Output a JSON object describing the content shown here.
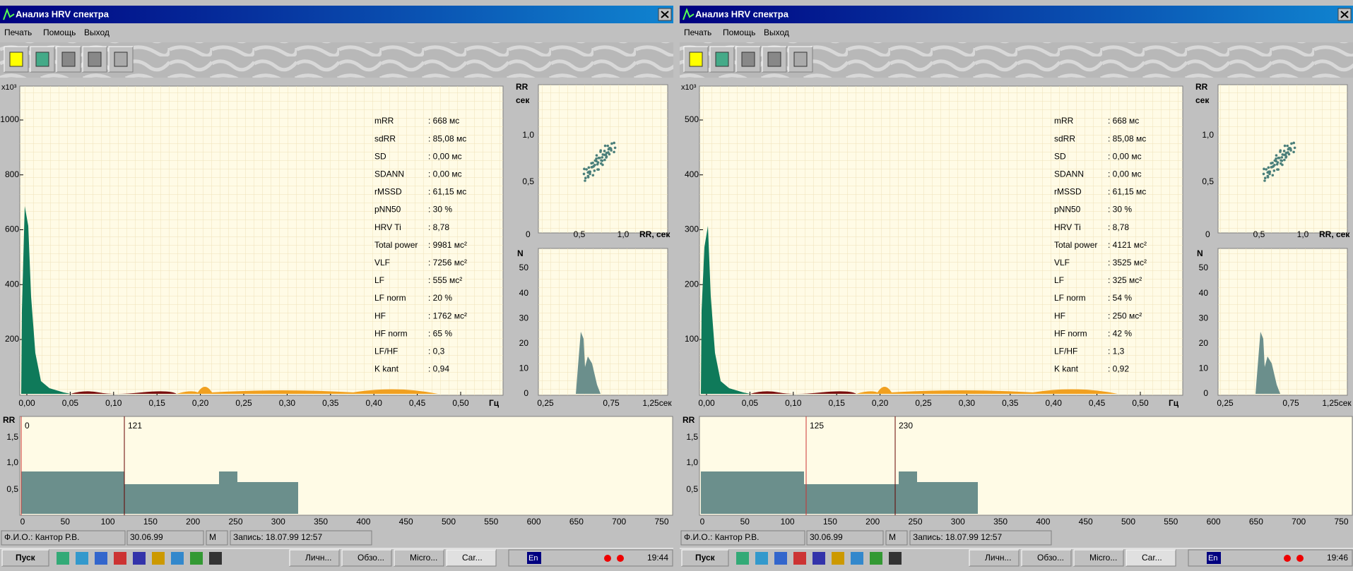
{
  "windows": [
    {
      "title": "Анализ HRV спектра",
      "menu": [
        "Печать",
        "Помощь",
        "Выход"
      ],
      "spectrum": {
        "multiplier": "x10³",
        "yticks": [
          "1000",
          "800",
          "600",
          "400",
          "200"
        ],
        "xticks": [
          "0,00",
          "0,05",
          "0,10",
          "0,15",
          "0,20",
          "0,25",
          "0,30",
          "0,35",
          "0,40",
          "0,45",
          "0,50"
        ],
        "xunit": "Гц"
      },
      "stats": [
        [
          "mRR",
          ": 668 мс"
        ],
        [
          "sdRR",
          ": 85,08 мс"
        ],
        [
          "SD",
          ": 0,00 мс"
        ],
        [
          "SDANN",
          ": 0,00 мс"
        ],
        [
          "rMSSD",
          ": 61,15 мс"
        ],
        [
          "pNN50",
          ": 30 %"
        ],
        [
          "HRV Ti",
          ": 8,78"
        ],
        [
          "Total power",
          ": 9981 мс²"
        ],
        [
          "VLF",
          ": 7256 мс²"
        ],
        [
          "LF",
          ": 555 мс²"
        ],
        [
          "LF norm",
          ": 20 %"
        ],
        [
          "HF",
          ": 1762 мс²"
        ],
        [
          "HF norm",
          ": 65 %"
        ],
        [
          "LF/HF",
          ": 0,3"
        ],
        [
          "K kant",
          ": 0,94"
        ]
      ],
      "scatter": {
        "ylabel": "RR",
        "yunit": "сек",
        "yticks": [
          "1,0",
          "0,5"
        ],
        "origin": "0",
        "xticks": [
          "0,5",
          "1,0"
        ],
        "xlabel": "RR, сек"
      },
      "histogram": {
        "ylabel": "N",
        "yticks": [
          "50",
          "40",
          "30",
          "20",
          "10",
          "0"
        ],
        "xticks": [
          "0,25",
          "0,75",
          "1,25сек"
        ]
      },
      "rr": {
        "ylabel": "RR",
        "yticks": [
          "1,5",
          "1,0",
          "0,5"
        ],
        "xticks": [
          "0",
          "50",
          "100",
          "150",
          "200",
          "250",
          "300",
          "350",
          "400",
          "450",
          "500",
          "550",
          "600",
          "650",
          "700",
          "750"
        ],
        "markers": [
          "0",
          "121"
        ]
      },
      "status": [
        "Ф.И.О.: Кантор Р.В.",
        "30.06.99",
        "М",
        "Запись: 18.07.99 12:57"
      ],
      "taskbar": {
        "start": "Пуск",
        "tasks": [
          "Личн...",
          "Обзо...",
          "Micro...",
          "Car..."
        ],
        "lang": "En",
        "clock": "19:44"
      }
    },
    {
      "title": "Анализ HRV спектра",
      "menu": [
        "Печать",
        "Помощь",
        "Выход"
      ],
      "spectrum": {
        "multiplier": "x10³",
        "yticks": [
          "500",
          "400",
          "300",
          "200",
          "100"
        ],
        "xticks": [
          "0,00",
          "0,05",
          "0,10",
          "0,15",
          "0,20",
          "0,25",
          "0,30",
          "0,35",
          "0,40",
          "0,45",
          "0,50"
        ],
        "xunit": "Гц"
      },
      "stats": [
        [
          "mRR",
          ": 668 мс"
        ],
        [
          "sdRR",
          ": 85,08 мс"
        ],
        [
          "SD",
          ": 0,00 мс"
        ],
        [
          "SDANN",
          ": 0,00 мс"
        ],
        [
          "rMSSD",
          ": 61,15 мс"
        ],
        [
          "pNN50",
          ": 30 %"
        ],
        [
          "HRV Ti",
          ": 8,78"
        ],
        [
          "Total power",
          ": 4121 мс²"
        ],
        [
          "VLF",
          ": 3525 мс²"
        ],
        [
          "LF",
          ": 325 мс²"
        ],
        [
          "LF norm",
          ": 54 %"
        ],
        [
          "HF",
          ": 250 мс²"
        ],
        [
          "HF norm",
          ": 42 %"
        ],
        [
          "LF/HF",
          ": 1,3"
        ],
        [
          "K kant",
          ": 0,92"
        ]
      ],
      "scatter": {
        "ylabel": "RR",
        "yunit": "сек",
        "yticks": [
          "1,0",
          "0,5"
        ],
        "origin": "0",
        "xticks": [
          "0,5",
          "1,0"
        ],
        "xlabel": "RR, сек"
      },
      "histogram": {
        "ylabel": "N",
        "yticks": [
          "50",
          "40",
          "30",
          "20",
          "10",
          "0"
        ],
        "xticks": [
          "0,25",
          "0,75",
          "1,25сек"
        ]
      },
      "rr": {
        "ylabel": "RR",
        "yticks": [
          "1,5",
          "1,0",
          "0,5"
        ],
        "xticks": [
          "0",
          "50",
          "100",
          "150",
          "200",
          "250",
          "300",
          "350",
          "400",
          "450",
          "500",
          "550",
          "600",
          "650",
          "700",
          "750"
        ],
        "markers": [
          "125",
          "230"
        ]
      },
      "status": [
        "Ф.И.О.: Кантор Р.В.",
        "30.06.99",
        "М",
        "Запись: 18.07.99 12:57"
      ],
      "taskbar": {
        "start": "Пуск",
        "tasks": [
          "Личн...",
          "Обзо...",
          "Micro...",
          "Car..."
        ],
        "lang": "En",
        "clock": "19:46"
      }
    }
  ]
}
